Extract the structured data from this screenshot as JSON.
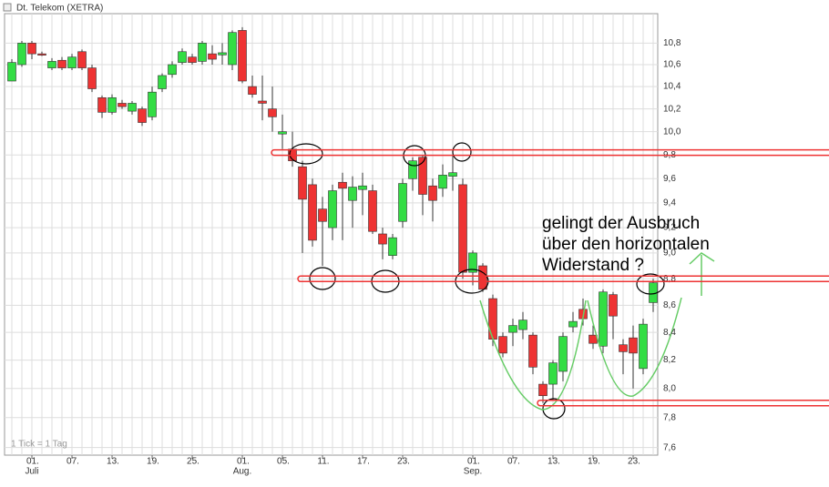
{
  "title": "Dt. Telekom (XETRA)",
  "footer": "1 Tick = 1 Tag",
  "annotation": [
    "gelingt der Ausbruch",
    "über den horizontalen",
    "Widerstand ?"
  ],
  "chart_data": {
    "type": "candlestick",
    "log_scale": true,
    "grid": true,
    "up_color": "#33dd44",
    "down_color": "#ee3333",
    "level_color": "#ee3333",
    "categories": [
      null,
      null,
      "01.",
      null,
      null,
      null,
      "07.",
      null,
      null,
      null,
      "13.",
      null,
      null,
      null,
      "19.",
      null,
      null,
      null,
      "25.",
      null,
      null,
      null,
      null,
      "01.",
      null,
      null,
      null,
      "05.",
      null,
      null,
      null,
      "11.",
      null,
      null,
      null,
      "17.",
      null,
      null,
      null,
      "23.",
      null,
      null,
      null,
      null,
      null,
      null,
      "01.",
      null,
      null,
      null,
      "07.",
      null,
      null,
      null,
      "13.",
      null,
      null,
      null,
      "19.",
      null,
      null,
      null,
      "23.",
      null,
      null
    ],
    "months": [
      null,
      null,
      "Juli",
      null,
      null,
      null,
      null,
      null,
      null,
      null,
      null,
      null,
      null,
      null,
      null,
      null,
      null,
      null,
      null,
      null,
      null,
      null,
      null,
      "Aug.",
      null,
      null,
      null,
      null,
      null,
      null,
      null,
      null,
      null,
      null,
      null,
      null,
      null,
      null,
      null,
      null,
      null,
      null,
      null,
      null,
      null,
      null,
      "Sep.",
      null,
      null,
      null,
      null,
      null,
      null,
      null,
      null,
      null,
      null,
      null,
      null,
      null,
      null,
      null,
      null,
      null,
      null
    ],
    "open": [
      10.45,
      10.6,
      10.8,
      10.7,
      10.57,
      10.64,
      10.57,
      10.72,
      10.57,
      10.3,
      10.17,
      10.25,
      10.18,
      10.2,
      10.13,
      10.38,
      10.51,
      10.62,
      10.67,
      10.63,
      10.7,
      10.69,
      10.6,
      10.92,
      10.4,
      10.27,
      10.2,
      9.98,
      9.85,
      9.7,
      9.55,
      9.35,
      9.2,
      9.57,
      9.42,
      9.51,
      9.5,
      9.15,
      8.98,
      9.25,
      9.6,
      9.78,
      9.54,
      9.52,
      9.62,
      9.55,
      8.85,
      8.9,
      8.65,
      8.37,
      8.4,
      8.42,
      8.38,
      8.03,
      8.03,
      8.12,
      8.44,
      8.57,
      8.38,
      8.3,
      8.68,
      8.31,
      8.36,
      8.14,
      8.62
    ],
    "high": [
      10.65,
      10.82,
      10.82,
      10.72,
      10.66,
      10.67,
      10.7,
      10.74,
      10.6,
      10.32,
      10.33,
      10.28,
      10.27,
      10.22,
      10.4,
      10.52,
      10.63,
      10.75,
      10.7,
      10.82,
      10.78,
      10.8,
      10.92,
      10.95,
      10.5,
      10.5,
      10.4,
      10.15,
      10.0,
      9.75,
      9.6,
      9.45,
      9.55,
      9.65,
      9.62,
      9.65,
      9.55,
      9.2,
      9.15,
      9.6,
      9.78,
      9.8,
      9.6,
      9.72,
      9.8,
      9.6,
      9.02,
      8.92,
      8.68,
      8.4,
      8.5,
      8.55,
      8.4,
      8.05,
      8.2,
      8.4,
      8.55,
      8.65,
      8.45,
      8.72,
      8.7,
      8.35,
      8.45,
      8.5,
      8.8
    ],
    "low": [
      10.45,
      10.58,
      10.65,
      10.68,
      10.55,
      10.55,
      10.55,
      10.55,
      10.35,
      10.12,
      10.15,
      10.2,
      10.15,
      10.05,
      10.1,
      10.35,
      10.48,
      10.6,
      10.6,
      10.6,
      10.6,
      10.6,
      10.55,
      10.43,
      10.3,
      10.1,
      10.0,
      9.85,
      9.7,
      9.0,
      9.05,
      8.9,
      9.1,
      9.1,
      9.2,
      9.3,
      9.15,
      8.95,
      8.95,
      9.2,
      9.5,
      9.3,
      9.25,
      9.45,
      9.5,
      8.8,
      8.75,
      8.7,
      8.3,
      8.22,
      8.3,
      8.35,
      8.1,
      7.9,
      7.92,
      8.05,
      8.4,
      8.45,
      8.28,
      8.25,
      8.35,
      8.1,
      8.0,
      8.1,
      8.55
    ],
    "close": [
      10.62,
      10.8,
      10.7,
      10.69,
      10.63,
      10.57,
      10.67,
      10.57,
      10.38,
      10.17,
      10.3,
      10.22,
      10.25,
      10.08,
      10.35,
      10.5,
      10.6,
      10.72,
      10.62,
      10.8,
      10.65,
      10.71,
      10.9,
      10.45,
      10.33,
      10.25,
      10.13,
      10.0,
      9.75,
      9.43,
      9.1,
      9.25,
      9.5,
      9.52,
      9.53,
      9.54,
      9.17,
      9.07,
      9.12,
      9.56,
      9.75,
      9.47,
      9.42,
      9.63,
      9.65,
      8.85,
      9.0,
      8.72,
      8.35,
      8.25,
      8.45,
      8.49,
      8.15,
      7.95,
      8.18,
      8.37,
      8.48,
      8.5,
      8.32,
      8.7,
      8.52,
      8.26,
      8.25,
      8.46,
      8.77
    ],
    "levels": [
      9.82,
      8.8,
      7.9
    ],
    "ylim": [
      7.55,
      11.08
    ],
    "yticks": [
      {
        "value": 7.6,
        "label": "7,6"
      },
      {
        "value": 7.8,
        "label": "7,8"
      },
      {
        "value": 8.0,
        "label": "8,0"
      },
      {
        "value": 8.2,
        "label": "8,2"
      },
      {
        "value": 8.4,
        "label": "8,4"
      },
      {
        "value": 8.6,
        "label": "8,6"
      },
      {
        "value": 8.8,
        "label": "8,8"
      },
      {
        "value": 9.0,
        "label": "9,0"
      },
      {
        "value": 9.2,
        "label": "9,2"
      },
      {
        "value": 9.4,
        "label": "9,4"
      },
      {
        "value": 9.6,
        "label": "9,6"
      },
      {
        "value": 9.8,
        "label": "9,8"
      },
      {
        "value": 10.0,
        "label": "10,0"
      },
      {
        "value": 10.2,
        "label": "10,2"
      },
      {
        "value": 10.4,
        "label": "10,4"
      },
      {
        "value": 10.6,
        "label": "10,6"
      },
      {
        "value": 10.8,
        "label": "10,8"
      }
    ]
  }
}
